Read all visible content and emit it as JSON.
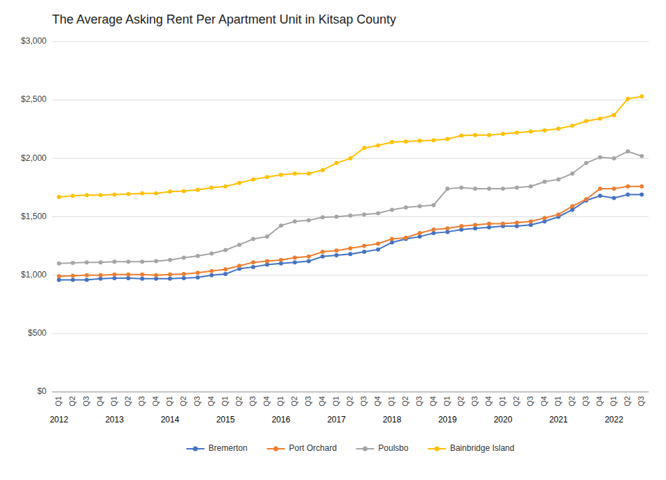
{
  "chart_data": {
    "type": "line",
    "title": "The Average Asking Rent Per Apartment Unit in Kitsap County",
    "categories": [
      "Q1",
      "Q2",
      "Q3",
      "Q4",
      "Q1",
      "Q2",
      "Q3",
      "Q4",
      "Q1",
      "Q2",
      "Q3",
      "Q4",
      "Q1",
      "Q2",
      "Q3",
      "Q4",
      "Q1",
      "Q2",
      "Q3",
      "Q4",
      "Q1",
      "Q2",
      "Q3",
      "Q4",
      "Q1",
      "Q2",
      "Q3",
      "Q4",
      "Q1",
      "Q2",
      "Q3",
      "Q4",
      "Q1",
      "Q2",
      "Q3",
      "Q4",
      "Q1",
      "Q2",
      "Q3",
      "Q4",
      "Q1",
      "Q2",
      "Q3"
    ],
    "annotations": [
      {
        "text": "2012",
        "at": 0
      },
      {
        "text": "2013",
        "at": 4
      },
      {
        "text": "2014",
        "at": 8
      },
      {
        "text": "2015",
        "at": 12
      },
      {
        "text": "2016",
        "at": 16
      },
      {
        "text": "2017",
        "at": 20
      },
      {
        "text": "2018",
        "at": 24
      },
      {
        "text": "2019",
        "at": 28
      },
      {
        "text": "2020",
        "at": 32
      },
      {
        "text": "2021",
        "at": 36
      },
      {
        "text": "2022",
        "at": 40
      }
    ],
    "series": [
      {
        "name": "Bremerton",
        "color": "#4472C4",
        "marker": "circle",
        "values": [
          960,
          960,
          960,
          970,
          975,
          975,
          970,
          970,
          970,
          975,
          980,
          1000,
          1010,
          1055,
          1070,
          1090,
          1100,
          1110,
          1120,
          1160,
          1170,
          1180,
          1200,
          1220,
          1280,
          1310,
          1330,
          1360,
          1370,
          1390,
          1400,
          1410,
          1420,
          1420,
          1430,
          1460,
          1500,
          1560,
          1640,
          1680,
          1660,
          1690,
          1690
        ]
      },
      {
        "name": "Port Orchard",
        "color": "#ED7D31",
        "marker": "circle",
        "values": [
          990,
          995,
          1000,
          1000,
          1005,
          1005,
          1005,
          1000,
          1005,
          1010,
          1020,
          1035,
          1050,
          1080,
          1110,
          1120,
          1130,
          1150,
          1160,
          1200,
          1210,
          1230,
          1250,
          1270,
          1310,
          1320,
          1360,
          1390,
          1400,
          1420,
          1430,
          1440,
          1440,
          1450,
          1460,
          1490,
          1520,
          1590,
          1650,
          1740,
          1740,
          1760,
          1760
        ]
      },
      {
        "name": "Poulsbo",
        "color": "#A5A5A5",
        "marker": "circle",
        "values": [
          1100,
          1105,
          1110,
          1110,
          1115,
          1115,
          1115,
          1120,
          1130,
          1150,
          1165,
          1185,
          1215,
          1260,
          1310,
          1330,
          1425,
          1460,
          1470,
          1495,
          1500,
          1510,
          1520,
          1530,
          1560,
          1580,
          1590,
          1600,
          1740,
          1750,
          1740,
          1740,
          1740,
          1750,
          1760,
          1800,
          1820,
          1870,
          1960,
          2010,
          2000,
          2060,
          2020
        ]
      },
      {
        "name": "Bainbridge Island",
        "color": "#FFC000",
        "marker": "circle",
        "values": [
          1670,
          1680,
          1685,
          1685,
          1690,
          1695,
          1700,
          1700,
          1715,
          1720,
          1730,
          1750,
          1760,
          1790,
          1820,
          1840,
          1860,
          1870,
          1870,
          1900,
          1960,
          2000,
          2090,
          2110,
          2140,
          2145,
          2150,
          2155,
          2165,
          2195,
          2200,
          2200,
          2210,
          2220,
          2230,
          2240,
          2255,
          2280,
          2320,
          2340,
          2370,
          2510,
          2530
        ]
      }
    ],
    "ylim": [
      0,
      3000
    ],
    "yticks": [
      {
        "value": 0,
        "label": "$0"
      },
      {
        "value": 500,
        "label": "$500"
      },
      {
        "value": 1000,
        "label": "$1,000"
      },
      {
        "value": 1500,
        "label": "$1,500"
      },
      {
        "value": 2000,
        "label": "$2,000"
      },
      {
        "value": 2500,
        "label": "$2,500"
      },
      {
        "value": 3000,
        "label": "$3,000"
      }
    ],
    "grid": true,
    "legend": "bottom"
  }
}
